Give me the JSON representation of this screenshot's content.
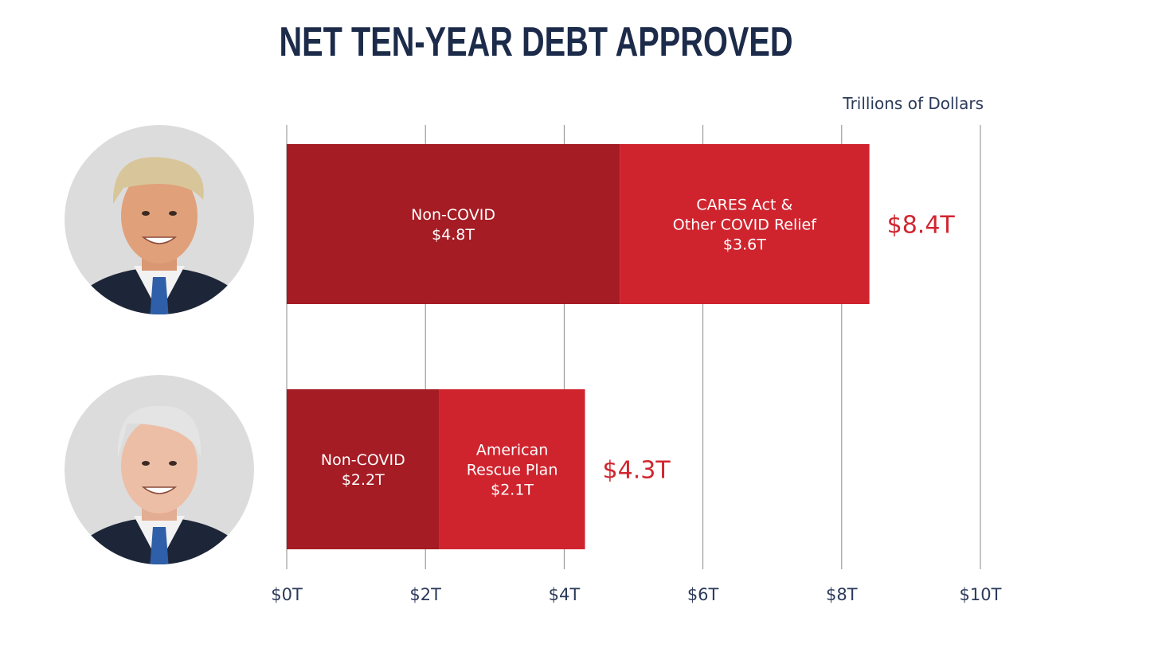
{
  "chart_data": {
    "type": "bar",
    "orientation": "horizontal",
    "stacked": true,
    "title": "NET TEN-YEAR DEBT APPROVED",
    "unit_label": "Trillions of Dollars",
    "xlim": [
      0,
      10
    ],
    "x_ticks": [
      {
        "value": 0,
        "label": "$0T"
      },
      {
        "value": 2,
        "label": "$2T"
      },
      {
        "value": 4,
        "label": "$4T"
      },
      {
        "value": 6,
        "label": "$6T"
      },
      {
        "value": 8,
        "label": "$8T"
      },
      {
        "value": 10,
        "label": "$10T"
      }
    ],
    "grid": true,
    "bars": [
      {
        "avatar_icon": "portrait-trump-icon",
        "total": 8.4,
        "total_label": "$8.4T",
        "segments": [
          {
            "value": 4.8,
            "color": "#a51c24",
            "label_lines": [
              "Non-COVID",
              "$4.8T"
            ]
          },
          {
            "value": 3.6,
            "color": "#cf242e",
            "label_lines": [
              "CARES Act &",
              "Other COVID Relief",
              "$3.6T"
            ]
          }
        ]
      },
      {
        "avatar_icon": "portrait-biden-icon",
        "total": 4.3,
        "total_label": "$4.3T",
        "segments": [
          {
            "value": 2.2,
            "color": "#a51c24",
            "label_lines": [
              "Non-COVID",
              "$2.2T"
            ]
          },
          {
            "value": 2.1,
            "color": "#cf242e",
            "label_lines": [
              "American",
              "Rescue Plan",
              "$2.1T"
            ]
          }
        ]
      }
    ]
  }
}
